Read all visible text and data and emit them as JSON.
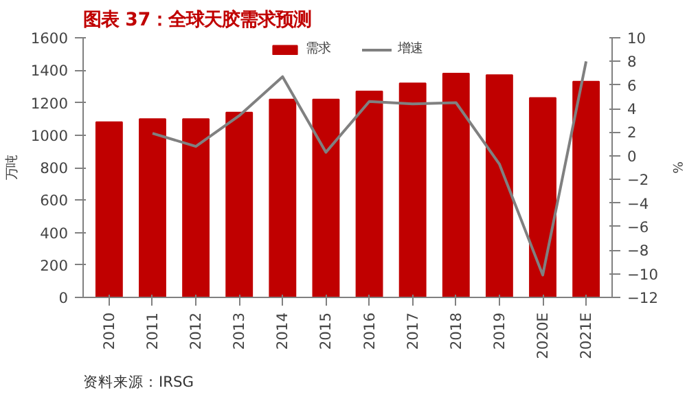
{
  "chart_data": {
    "type": "bar",
    "title": "图表 37：全球天胶需求预测",
    "ylabel": "万吨",
    "y2label": "%",
    "categories": [
      "2010",
      "2011",
      "2012",
      "2013",
      "2014",
      "2015",
      "2016",
      "2017",
      "2018",
      "2019",
      "2020E",
      "2021E"
    ],
    "series": [
      {
        "name": "需求",
        "color": "#c00000",
        "values": [
          1080,
          1100,
          1100,
          1140,
          1220,
          1220,
          1270,
          1320,
          1380,
          1370,
          1230,
          1330
        ]
      },
      {
        "name": "增速",
        "type": "line",
        "axis": "y2",
        "color": "#808080",
        "values": [
          null,
          1.9,
          0.8,
          3.4,
          6.7,
          0.3,
          4.6,
          4.4,
          4.5,
          -0.7,
          -10.1,
          8.0
        ]
      }
    ],
    "ylim": [
      0,
      1600
    ],
    "yticks": [
      0,
      200,
      400,
      600,
      800,
      1000,
      1200,
      1400,
      1600
    ],
    "y2lim": [
      -12,
      10
    ],
    "y2ticks": [
      -12,
      -10,
      -8,
      -6,
      -4,
      -2,
      0,
      2,
      4,
      6,
      8,
      10
    ],
    "legend": "top",
    "grid": false,
    "line_style": "solid",
    "marker": "none",
    "annotations": [
      "资料来源：IRSG"
    ]
  }
}
